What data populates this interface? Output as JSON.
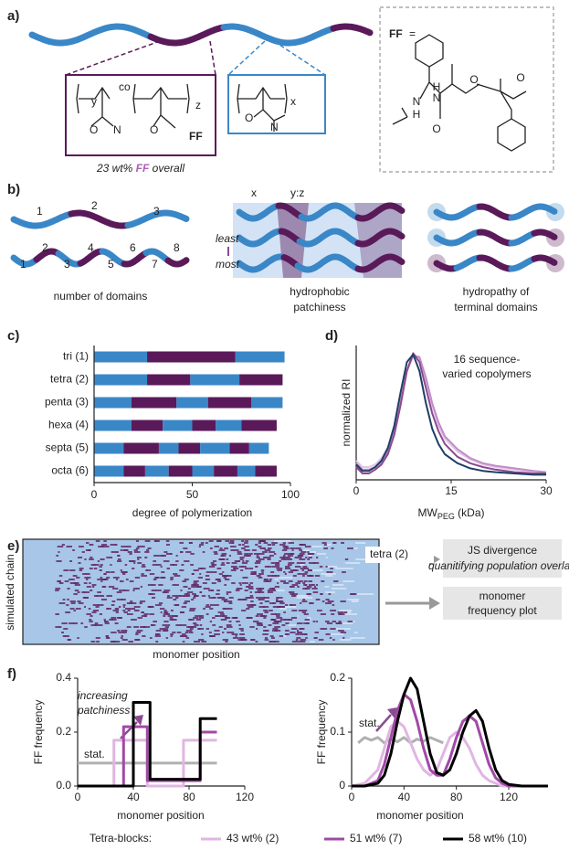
{
  "panel_a": {
    "label": "a)",
    "left_box_labels": [
      "y",
      "co",
      "z",
      "O",
      "N",
      "O",
      "FF"
    ],
    "right_box_labels": [
      "x",
      "O",
      "N"
    ],
    "caption": {
      "prefix": "23 wt% ",
      "ff": "FF",
      "suffix": " overall"
    },
    "ff_box": {
      "ff": "FF",
      "eq": "=",
      "atoms": [
        "N",
        "H",
        "N",
        "H",
        "O",
        "O",
        "O"
      ]
    }
  },
  "panel_b": {
    "label": "b)",
    "domains_top": [
      "1",
      "2",
      "3"
    ],
    "domains_bottom": [
      "1",
      "2",
      "3",
      "4",
      "5",
      "6",
      "7",
      "8"
    ],
    "left_caption": "number of domains",
    "x": "x",
    "yz": "y:z",
    "least": "least",
    "most": "most",
    "middle_caption": [
      "hydrophobic",
      "patchiness"
    ],
    "right_caption": [
      "hydropathy of",
      "terminal domains"
    ]
  },
  "panel_e": {
    "label": "e)",
    "ylabel": "simulated chain",
    "xlabel": "monomer position",
    "tag": "tetra (2)",
    "box1": [
      "JS divergence",
      "quanitifying population overlap"
    ],
    "box2": [
      "monomer",
      "frequency plot"
    ]
  },
  "panel_f": {
    "label": "f)",
    "legend_title": "Tetra-blocks:"
  },
  "chart_data": [
    {
      "type": "segmented-bar",
      "title": "c)",
      "xlabel": "degree of polymerization",
      "categories": [
        "tri (1)",
        "tetra (2)",
        "penta (3)",
        "hexa (4)",
        "septa (5)",
        "octa (6)"
      ],
      "values": [
        [
          27,
          45,
          25
        ],
        [
          27,
          22,
          25,
          22
        ],
        [
          19,
          23,
          16,
          22,
          16
        ],
        [
          19,
          16,
          15,
          12,
          13,
          18
        ],
        [
          15,
          18,
          10,
          11,
          15,
          10,
          10
        ],
        [
          15,
          11,
          12,
          12,
          11,
          12,
          9,
          11
        ]
      ],
      "colors": [
        "#3a87c8",
        "#5a1a5a"
      ],
      "xlim": [
        0,
        100
      ],
      "xticks": [
        0,
        50,
        100
      ]
    },
    {
      "type": "line",
      "title": "d)",
      "ylabel": "normalized RI",
      "xlabel": {
        "main": "MW",
        "sub": "PEG",
        "unit": " (kDa)"
      },
      "annotation": [
        "16 sequence-",
        "varied copolymers"
      ],
      "x": [
        0,
        1,
        2,
        3,
        4,
        5,
        6,
        7,
        8,
        9,
        10,
        11,
        12,
        13,
        14,
        16,
        18,
        20,
        22,
        25,
        28,
        30
      ],
      "series": [
        {
          "color": "#e3c6e6",
          "values": [
            0.15,
            0.1,
            0.1,
            0.12,
            0.17,
            0.25,
            0.4,
            0.62,
            0.86,
            0.98,
            0.95,
            0.78,
            0.58,
            0.42,
            0.32,
            0.22,
            0.16,
            0.12,
            0.1,
            0.08,
            0.06,
            0.05
          ]
        },
        {
          "color": "#c08cc6",
          "values": [
            0.13,
            0.08,
            0.08,
            0.1,
            0.14,
            0.22,
            0.37,
            0.6,
            0.85,
            0.97,
            0.96,
            0.8,
            0.6,
            0.45,
            0.34,
            0.24,
            0.17,
            0.13,
            0.11,
            0.09,
            0.07,
            0.06
          ]
        },
        {
          "color": "#8a4a90",
          "values": [
            0.1,
            0.05,
            0.05,
            0.08,
            0.12,
            0.2,
            0.35,
            0.58,
            0.85,
            0.99,
            0.92,
            0.72,
            0.52,
            0.38,
            0.28,
            0.18,
            0.13,
            0.1,
            0.08,
            0.06,
            0.05,
            0.05
          ]
        },
        {
          "color": "#1d3f66",
          "values": [
            0.12,
            0.07,
            0.07,
            0.1,
            0.15,
            0.25,
            0.42,
            0.68,
            0.92,
            0.98,
            0.85,
            0.6,
            0.4,
            0.28,
            0.2,
            0.13,
            0.09,
            0.07,
            0.06,
            0.05,
            0.04,
            0.04
          ]
        }
      ],
      "xlim": [
        0,
        30
      ],
      "xticks": [
        0,
        15,
        30
      ],
      "ylim": [
        0,
        1.05
      ]
    },
    {
      "type": "line",
      "ylabel": "FF frequency",
      "xlabel": "monomer position",
      "annotation": [
        "increasing",
        "patchiness"
      ],
      "series": [
        {
          "name": "stat.",
          "color": "#b0b0b0",
          "x": [
            0,
            100
          ],
          "values": [
            0.085,
            0.085
          ]
        },
        {
          "name": "43 wt% (2)",
          "color": "#e0b6e2",
          "x": [
            0,
            26,
            26,
            50,
            50,
            76,
            76,
            100
          ],
          "values": [
            0,
            0,
            0.17,
            0.17,
            0,
            0,
            0.17,
            0.17
          ]
        },
        {
          "name": "51 wt% (7)",
          "color": "#a04aa6",
          "x": [
            0,
            33,
            33,
            50,
            50,
            88,
            88,
            100
          ],
          "values": [
            0,
            0,
            0.22,
            0.22,
            0.02,
            0.02,
            0.2,
            0.2
          ]
        },
        {
          "name": "58 wt% (10)",
          "color": "#000000",
          "x": [
            0,
            40,
            40,
            52,
            52,
            88,
            88,
            100
          ],
          "values": [
            0,
            0,
            0.31,
            0.31,
            0.025,
            0.025,
            0.25,
            0.25
          ]
        }
      ],
      "xlim": [
        0,
        120
      ],
      "xticks": [
        0,
        40,
        80,
        120
      ],
      "ylim": [
        0,
        0.4
      ],
      "yticks": [
        {
          "value": 0,
          "label": "0.0"
        },
        0.2,
        0.4
      ]
    },
    {
      "type": "line",
      "ylabel": "FF frequency",
      "xlabel": "monomer position",
      "series": [
        {
          "name": "stat.",
          "color": "#b0b0b0",
          "x": [
            5,
            10,
            15,
            20,
            25,
            30,
            35,
            40,
            45,
            50,
            55,
            60,
            65,
            70
          ],
          "values": [
            0.08,
            0.09,
            0.085,
            0.09,
            0.08,
            0.088,
            0.082,
            0.09,
            0.08,
            0.087,
            0.083,
            0.09,
            0.085,
            0.08
          ]
        },
        {
          "color": "#e0b6e2",
          "x": [
            0,
            10,
            20,
            25,
            30,
            35,
            40,
            45,
            50,
            55,
            60,
            65,
            70,
            75,
            80,
            85,
            90,
            95,
            100,
            105,
            110,
            115,
            120,
            130,
            140,
            150
          ],
          "values": [
            0,
            0.005,
            0.03,
            0.07,
            0.11,
            0.12,
            0.11,
            0.08,
            0.05,
            0.03,
            0.02,
            0.03,
            0.06,
            0.09,
            0.1,
            0.09,
            0.07,
            0.04,
            0.02,
            0.01,
            0.005,
            0,
            0,
            0,
            0,
            0
          ]
        },
        {
          "color": "#a04aa6",
          "x": [
            0,
            10,
            20,
            25,
            30,
            35,
            40,
            45,
            50,
            55,
            60,
            65,
            70,
            75,
            80,
            85,
            90,
            95,
            100,
            105,
            110,
            115,
            120,
            130,
            140,
            150
          ],
          "values": [
            0,
            0,
            0.01,
            0.04,
            0.09,
            0.14,
            0.17,
            0.16,
            0.12,
            0.07,
            0.03,
            0.02,
            0.02,
            0.05,
            0.09,
            0.12,
            0.13,
            0.12,
            0.08,
            0.04,
            0.015,
            0.005,
            0,
            0,
            0,
            0
          ]
        },
        {
          "color": "#000000",
          "x": [
            0,
            10,
            20,
            25,
            30,
            35,
            40,
            45,
            50,
            55,
            60,
            65,
            70,
            75,
            80,
            85,
            90,
            95,
            100,
            105,
            110,
            115,
            120,
            130,
            140,
            150
          ],
          "values": [
            0,
            0,
            0.005,
            0.02,
            0.06,
            0.12,
            0.17,
            0.2,
            0.18,
            0.12,
            0.06,
            0.025,
            0.02,
            0.03,
            0.06,
            0.1,
            0.13,
            0.14,
            0.12,
            0.07,
            0.03,
            0.01,
            0.003,
            0,
            0,
            0
          ]
        }
      ],
      "xlim": [
        0,
        150
      ],
      "xticks": [
        0,
        40,
        80,
        120
      ],
      "ylim": [
        0,
        0.2
      ],
      "yticks": [
        0,
        0.1,
        0.2
      ]
    }
  ]
}
